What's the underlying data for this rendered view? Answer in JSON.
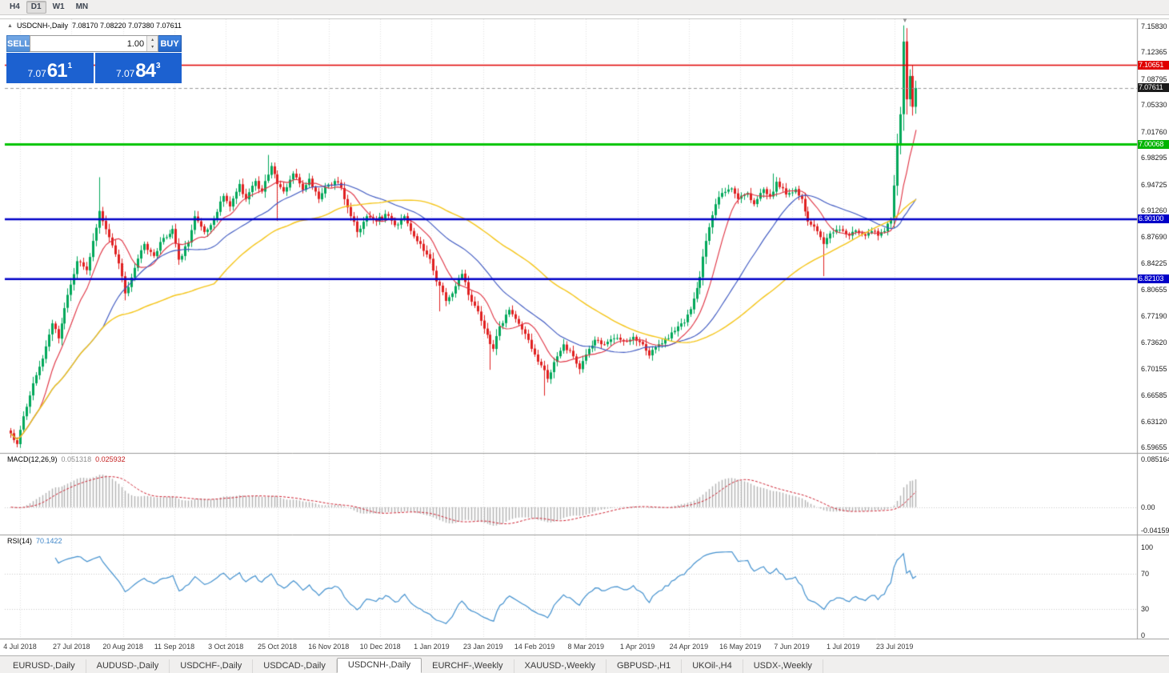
{
  "toolbar": {
    "timeframes": [
      {
        "label": "H4",
        "active": false
      },
      {
        "label": "D1",
        "active": true
      },
      {
        "label": "W1",
        "active": false
      },
      {
        "label": "MN",
        "active": false
      }
    ]
  },
  "caption": {
    "collapse_icon": "▲",
    "symbol_title": "USDCNH-,Daily",
    "ohlc": "7.08170 7.08220 7.07380 7.07611"
  },
  "one_click": {
    "sell_label": "SELL",
    "buy_label": "BUY",
    "volume": "1.00",
    "sell_price": {
      "main": "7.07",
      "big": "61",
      "sup": "1"
    },
    "buy_price": {
      "main": "7.07",
      "big": "84",
      "sup": "3"
    }
  },
  "hlines": [
    {
      "price": 7.10651,
      "label": "7.10651",
      "color": "#e00000",
      "width": 1.5,
      "label_bg": "#e00000"
    },
    {
      "price": 7.00068,
      "label": "7.00068",
      "color": "#00c400",
      "width": 3,
      "label_bg": "#00b400"
    },
    {
      "price": 6.901,
      "label": "6.90100",
      "color": "#0000c8",
      "width": 2.5,
      "label_bg": "#0000c8"
    },
    {
      "price": 6.82103,
      "label": "6.82103",
      "color": "#0000c8",
      "width": 2.5,
      "label_bg": "#0000c8"
    }
  ],
  "current_price": {
    "value": 7.07611,
    "text": "7.07611",
    "label_bg": "#1b1b1b"
  },
  "price_axis": {
    "gridline_labels": [
      {
        "text": "7.15830",
        "value": 7.1583
      },
      {
        "text": "7.12365",
        "value": 7.12365
      },
      {
        "text": "7.08795",
        "value": 7.08795
      },
      {
        "text": "7.05330",
        "value": 7.0533
      },
      {
        "text": "7.01760",
        "value": 7.0176
      },
      {
        "text": "6.98295",
        "value": 6.98295
      },
      {
        "text": "6.94725",
        "value": 6.94725
      },
      {
        "text": "6.91260",
        "value": 6.9126
      },
      {
        "text": "6.87690",
        "value": 6.8769
      },
      {
        "text": "6.84225",
        "value": 6.84225
      },
      {
        "text": "6.80655",
        "value": 6.80655
      },
      {
        "text": "6.77190",
        "value": 6.7719
      },
      {
        "text": "6.73620",
        "value": 6.7362
      },
      {
        "text": "6.70155",
        "value": 6.70155
      },
      {
        "text": "6.66585",
        "value": 6.66585
      },
      {
        "text": "6.63120",
        "value": 6.6312
      },
      {
        "text": "6.59655",
        "value": 6.59655
      }
    ]
  },
  "macd": {
    "name": "MACD(12,26,9)",
    "main_value": "0.051318",
    "signal_value": "0.025932",
    "axis": [
      {
        "text": "0.085164",
        "value": 0.085164
      },
      {
        "text": "0.00",
        "value": 0
      },
      {
        "text": "-0.04159",
        "value": -0.04159
      }
    ]
  },
  "rsi": {
    "name": "RSI(14)",
    "value": "70.1422",
    "axis": [
      {
        "text": "100",
        "value": 100
      },
      {
        "text": "70",
        "value": 70
      },
      {
        "text": "30",
        "value": 30
      },
      {
        "text": "0",
        "value": 0
      }
    ],
    "levels": [
      70,
      30
    ]
  },
  "date_axis": [
    "4 Jul 2018",
    "27 Jul 2018",
    "20 Aug 2018",
    "11 Sep 2018",
    "3 Oct 2018",
    "25 Oct 2018",
    "16 Nov 2018",
    "10 Dec 2018",
    "1 Jan 2019",
    "23 Jan 2019",
    "14 Feb 2019",
    "8 Mar 2019",
    "1 Apr 2019",
    "24 Apr 2019",
    "16 May 2019",
    "7 Jun 2019",
    "1 Jul 2019",
    "23 Jul 2019"
  ],
  "tabs": [
    {
      "label": "EURUSD-,Daily",
      "active": false
    },
    {
      "label": "AUDUSD-,Daily",
      "active": false
    },
    {
      "label": "USDCHF-,Daily",
      "active": false
    },
    {
      "label": "USDCAD-,Daily",
      "active": false
    },
    {
      "label": "USDCNH-,Daily",
      "active": true
    },
    {
      "label": "EURCHF-,Weekly",
      "active": false
    },
    {
      "label": "XAUUSD-,Weekly",
      "active": false
    },
    {
      "label": "GBPUSD-,H1",
      "active": false
    },
    {
      "label": "UKOil-,H4",
      "active": false
    },
    {
      "label": "USDX-,Weekly",
      "active": false
    }
  ],
  "shift_marker_icon": "▼",
  "chart_data": {
    "type": "candlestick",
    "symbol": "USDCNH",
    "timeframe": "Daily",
    "current_bar": {
      "open": 7.0817,
      "high": 7.0822,
      "low": 7.0738,
      "close": 7.07611
    },
    "bid": 7.07611,
    "ask": 7.07843,
    "ylim": [
      6.59655,
      7.1583
    ],
    "candle_count": 286,
    "up_color": "#00a85a",
    "down_color": "#e02020",
    "key_levels": [
      7.10651,
      7.00068,
      6.901,
      6.82103
    ],
    "close_anchors": [
      [
        0,
        6.615
      ],
      [
        2,
        6.601
      ],
      [
        4,
        6.638
      ],
      [
        7,
        6.682
      ],
      [
        10,
        6.715
      ],
      [
        13,
        6.762
      ],
      [
        15,
        6.742
      ],
      [
        18,
        6.8
      ],
      [
        21,
        6.845
      ],
      [
        24,
        6.833
      ],
      [
        26,
        6.872
      ],
      [
        28,
        6.912
      ],
      [
        31,
        6.877
      ],
      [
        34,
        6.842
      ],
      [
        36,
        6.802
      ],
      [
        39,
        6.836
      ],
      [
        42,
        6.868
      ],
      [
        45,
        6.852
      ],
      [
        48,
        6.876
      ],
      [
        51,
        6.888
      ],
      [
        53,
        6.847
      ],
      [
        56,
        6.87
      ],
      [
        58,
        6.905
      ],
      [
        61,
        6.884
      ],
      [
        64,
        6.902
      ],
      [
        67,
        6.932
      ],
      [
        69,
        6.918
      ],
      [
        72,
        6.948
      ],
      [
        74,
        6.928
      ],
      [
        77,
        6.952
      ],
      [
        79,
        6.938
      ],
      [
        82,
        6.972
      ],
      [
        84,
        6.948
      ],
      [
        86,
        6.938
      ],
      [
        89,
        6.962
      ],
      [
        92,
        6.94
      ],
      [
        94,
        6.955
      ],
      [
        97,
        6.928
      ],
      [
        99,
        6.944
      ],
      [
        102,
        6.952
      ],
      [
        104,
        6.943
      ],
      [
        107,
        6.905
      ],
      [
        109,
        6.884
      ],
      [
        112,
        6.905
      ],
      [
        115,
        6.898
      ],
      [
        118,
        6.908
      ],
      [
        121,
        6.893
      ],
      [
        124,
        6.905
      ],
      [
        127,
        6.878
      ],
      [
        129,
        6.868
      ],
      [
        132,
        6.848
      ],
      [
        134,
        6.818
      ],
      [
        137,
        6.792
      ],
      [
        139,
        6.802
      ],
      [
        142,
        6.828
      ],
      [
        144,
        6.8
      ],
      [
        147,
        6.778
      ],
      [
        149,
        6.755
      ],
      [
        152,
        6.728
      ],
      [
        154,
        6.758
      ],
      [
        157,
        6.78
      ],
      [
        159,
        6.768
      ],
      [
        162,
        6.748
      ],
      [
        164,
        6.728
      ],
      [
        167,
        6.706
      ],
      [
        169,
        6.688
      ],
      [
        172,
        6.718
      ],
      [
        174,
        6.734
      ],
      [
        177,
        6.718
      ],
      [
        179,
        6.701
      ],
      [
        182,
        6.728
      ],
      [
        184,
        6.74
      ],
      [
        187,
        6.734
      ],
      [
        190,
        6.742
      ],
      [
        193,
        6.738
      ],
      [
        196,
        6.744
      ],
      [
        199,
        6.734
      ],
      [
        201,
        6.719
      ],
      [
        204,
        6.734
      ],
      [
        207,
        6.742
      ],
      [
        209,
        6.752
      ],
      [
        212,
        6.763
      ],
      [
        214,
        6.781
      ],
      [
        217,
        6.824
      ],
      [
        219,
        6.872
      ],
      [
        222,
        6.921
      ],
      [
        224,
        6.936
      ],
      [
        227,
        6.942
      ],
      [
        229,
        6.928
      ],
      [
        232,
        6.936
      ],
      [
        234,
        6.921
      ],
      [
        237,
        6.941
      ],
      [
        239,
        6.931
      ],
      [
        241,
        6.951
      ],
      [
        244,
        6.934
      ],
      [
        247,
        6.941
      ],
      [
        249,
        6.928
      ],
      [
        251,
        6.898
      ],
      [
        254,
        6.885
      ],
      [
        256,
        6.868
      ],
      [
        258,
        6.882
      ],
      [
        261,
        6.887
      ],
      [
        264,
        6.879
      ],
      [
        266,
        6.886
      ],
      [
        269,
        6.879
      ],
      [
        271,
        6.885
      ],
      [
        273,
        6.879
      ],
      [
        275,
        6.885
      ],
      [
        277,
        6.901
      ],
      [
        278,
        6.946
      ],
      [
        279,
        7.001
      ],
      [
        280,
        7.041
      ],
      [
        281,
        7.138
      ],
      [
        282,
        7.061
      ],
      [
        283,
        7.092
      ],
      [
        284,
        7.051
      ],
      [
        285,
        7.0761
      ]
    ],
    "wick_overrides": [
      {
        "i": 2,
        "low": 6.5966
      },
      {
        "i": 28,
        "high": 6.957
      },
      {
        "i": 81,
        "high": 6.9868
      },
      {
        "i": 84,
        "low": 6.899
      },
      {
        "i": 135,
        "low": 6.778
      },
      {
        "i": 151,
        "low": 6.7
      },
      {
        "i": 168,
        "low": 6.6655
      },
      {
        "i": 240,
        "high": 6.962
      },
      {
        "i": 256,
        "low": 6.825
      },
      {
        "i": 281,
        "high": 7.1432
      }
    ],
    "moving_averages": [
      {
        "period": 10,
        "color": "#e03040"
      },
      {
        "period": 30,
        "color": "#3a55c0"
      },
      {
        "period": 65,
        "color": "#f5c518"
      }
    ],
    "indicators": {
      "macd": {
        "fast": 12,
        "slow": 26,
        "signal": 9,
        "histogram_color": "#b2b2b2",
        "signal_color": "#cf2030"
      },
      "rsi": {
        "period": 14,
        "color": "#4391cf",
        "levels": [
          70,
          30
        ]
      }
    }
  }
}
